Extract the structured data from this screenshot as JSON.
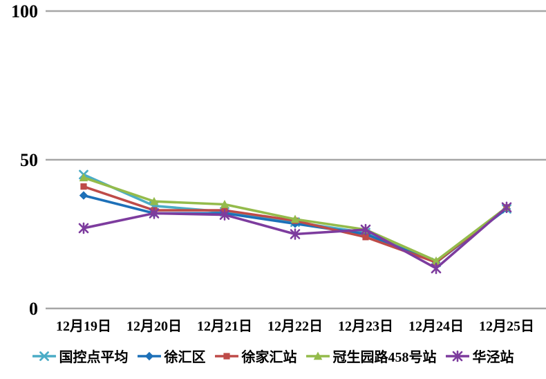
{
  "chart_data": {
    "type": "line",
    "title": "",
    "xlabel": "",
    "ylabel": "",
    "categories": [
      "12月19日",
      "12月20日",
      "12月21日",
      "12月22日",
      "12月23日",
      "12月24日",
      "12月25日"
    ],
    "series": [
      {
        "name": "国控点平均",
        "color": "#4BACC6",
        "marker": "x",
        "values": [
          45,
          34.5,
          32.5,
          29,
          25.5,
          15.5,
          33.5
        ]
      },
      {
        "name": "徐汇区",
        "color": "#1D70B8",
        "marker": "diamond",
        "values": [
          38,
          32,
          32,
          28.5,
          25,
          15.5,
          33.5
        ]
      },
      {
        "name": "徐家汇站",
        "color": "#BE4B48",
        "marker": "square",
        "values": [
          41,
          33,
          33,
          29.5,
          24,
          15.5,
          34
        ]
      },
      {
        "name": "冠生园路458号站",
        "color": "#94BB4B",
        "marker": "triangle",
        "values": [
          44,
          36,
          35,
          30,
          26.5,
          16,
          34
        ]
      },
      {
        "name": "华泾站",
        "color": "#7D3C9E",
        "marker": "asterisk",
        "values": [
          27,
          32,
          31.5,
          25,
          26.5,
          13.5,
          34
        ]
      }
    ],
    "ylim": [
      0,
      100
    ],
    "yticks": [
      0,
      50,
      100
    ],
    "grid": true,
    "legend_position": "bottom",
    "gridline_color": "#A6A6A6",
    "text_color": "#000000"
  }
}
